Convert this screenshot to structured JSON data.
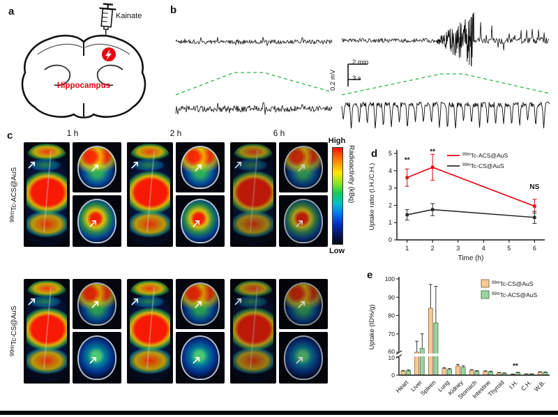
{
  "panels": {
    "a": {
      "letter": "a",
      "injection_label": "Kainate",
      "region_label": "Hippocampus"
    },
    "b": {
      "letter": "b",
      "scale_voltage": "0.2 mV",
      "scale_time_top": "2 min",
      "scale_time_bottom": "3 s"
    },
    "c": {
      "letter": "c",
      "time_labels": [
        "1 h",
        "2 h",
        "6 h"
      ],
      "row_labels": [
        {
          "sup": "99m",
          "rest": "Tc-ACS@AuS",
          "name": "99mTc-ACS@AuS"
        },
        {
          "sup": "99m",
          "rest": "Tc-CS@AuS",
          "name": "99mTc-CS@AuS"
        }
      ],
      "colorbar": {
        "top_label": "High",
        "bottom_label": "Low",
        "axis_label": "Radioactivity (kBq)"
      }
    },
    "d": {
      "letter": "d"
    },
    "e": {
      "letter": "e"
    }
  },
  "chart_data": [
    {
      "id": "uptake_ratio",
      "panel": "d",
      "type": "line",
      "x": [
        1,
        2,
        6
      ],
      "series": [
        {
          "name": "99mTc-ACS@AuS",
          "sup": "99m",
          "rest": "Tc-ACS@AuS",
          "color": "#e8000d",
          "values": [
            3.6,
            4.2,
            1.95
          ],
          "errors": [
            0.5,
            0.75,
            0.4
          ]
        },
        {
          "name": "99mTc-CS@AuS",
          "sup": "99m",
          "rest": "Tc-CS@AuS",
          "color": "#2b2b2b",
          "values": [
            1.45,
            1.75,
            1.3
          ],
          "errors": [
            0.3,
            0.35,
            0.35
          ]
        }
      ],
      "annotations": [
        {
          "x": 1,
          "y": 4.5,
          "text": "**"
        },
        {
          "x": 2,
          "y": 4.97,
          "text": "**"
        },
        {
          "x": 6,
          "y": 2.95,
          "text": "NS"
        }
      ],
      "xlabel": "Time (h)",
      "ylabel": "Uptake ratio (I.H./C.H.)",
      "xticks": [
        1,
        2,
        3,
        4,
        5,
        6
      ],
      "yticks": [
        0,
        1,
        2,
        3,
        4,
        5
      ],
      "xlim": [
        0.6,
        6.4
      ],
      "ylim": [
        0,
        5
      ],
      "grid": false,
      "legend_position": "top-right"
    },
    {
      "id": "biodistribution",
      "panel": "e",
      "type": "bar",
      "categories": [
        "Heart",
        "Liver",
        "Spleen",
        "Lung",
        "Kidney",
        "Stomach",
        "Intestine",
        "Thyroid",
        "I.H.",
        "C.H.",
        "W.B."
      ],
      "series": [
        {
          "name": "99mTc-CS@AuS",
          "sup": "99m",
          "rest": "Tc-CS@AuS",
          "color": "#f6c998",
          "edge": "#8a6a36",
          "values": [
            2.2,
            60,
            84,
            3.6,
            5,
            2.6,
            2,
            1.2,
            0.5,
            0.6,
            1.6
          ],
          "errors": [
            0.4,
            6,
            13,
            0.6,
            0.9,
            0.5,
            0.4,
            0.3,
            0.15,
            0.15,
            0.3
          ]
        },
        {
          "name": "99mTc-ACS@AuS",
          "sup": "99m",
          "rest": "Tc-ACS@AuS",
          "color": "#9dd3a2",
          "edge": "#40784a",
          "values": [
            2.4,
            62,
            76,
            3.1,
            4.3,
            2.1,
            1.8,
            1,
            1.3,
            0.6,
            1.5
          ],
          "errors": [
            0.5,
            8,
            20,
            0.5,
            0.8,
            0.4,
            0.4,
            0.25,
            0.3,
            0.15,
            0.3
          ]
        }
      ],
      "annotations": [
        {
          "category": "I.H.",
          "text": "**"
        }
      ],
      "ylabel": "Uptake (ID%/g)",
      "yticks_lower": [
        0,
        10
      ],
      "yticks_upper": [
        60,
        70,
        80,
        90,
        100
      ],
      "axis_break": {
        "lower_max": 10,
        "upper_min": 60
      },
      "ylim": [
        0,
        100
      ],
      "grid": false,
      "legend_position": "top-right"
    }
  ]
}
